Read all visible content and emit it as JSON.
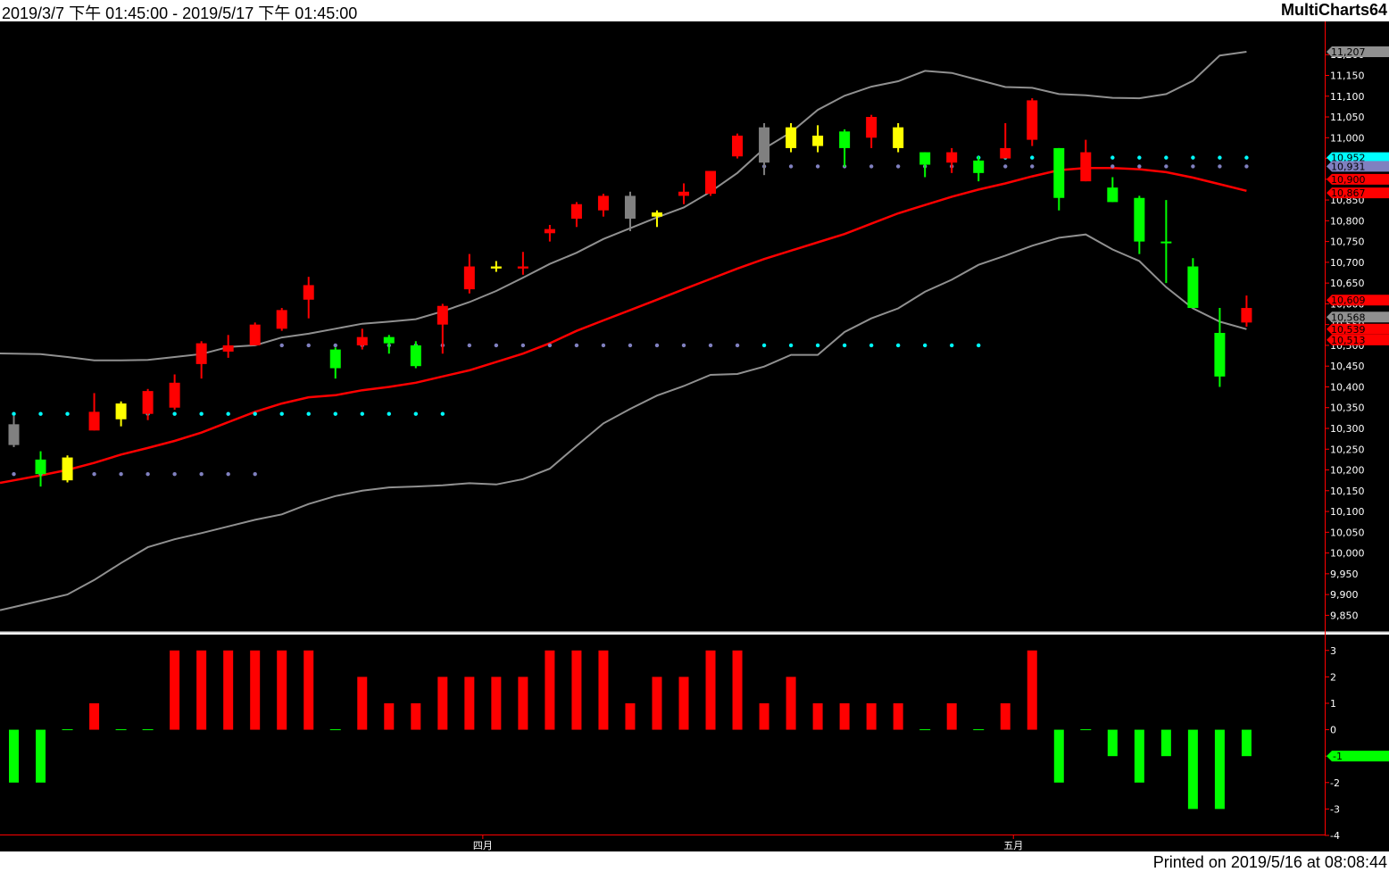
{
  "header": {
    "date_range": "2019/3/7 下午 01:45:00 - 2019/5/17 下午 01:45:00",
    "app_name": "MultiCharts64"
  },
  "footer": {
    "printed": "Printed on 2019/5/16 at 08:08:44"
  },
  "colors": {
    "bull": "#ff0000",
    "green": "#00ff00",
    "yellow": "#ffff00",
    "gray": "#808080",
    "middle_band": "#ff0000",
    "outer_band": "#909090",
    "cyan_dot": "#00ffff",
    "blue_dot": "#8080c0"
  },
  "chart_data": [
    {
      "type": "candlestick",
      "title": "",
      "x_tick_labels": [
        {
          "label": "四月",
          "at": 17.5
        },
        {
          "label": "五月",
          "at": 37.3
        }
      ],
      "ylim": [
        9810,
        11280
      ],
      "y_ticks": [
        9850,
        9900,
        9950,
        10000,
        10050,
        10100,
        10150,
        10200,
        10250,
        10300,
        10350,
        10400,
        10450,
        10500,
        10550,
        10600,
        10650,
        10700,
        10750,
        10800,
        10850,
        10900,
        10950,
        11000,
        11050,
        11100,
        11150,
        11200
      ],
      "candles": [
        {
          "o": 10310,
          "h": 10330,
          "l": 10255,
          "c": 10260,
          "color": "gray"
        },
        {
          "o": 10190,
          "h": 10245,
          "l": 10160,
          "c": 10225,
          "color": "green"
        },
        {
          "o": 10230,
          "h": 10235,
          "l": 10170,
          "c": 10175,
          "color": "yellow"
        },
        {
          "o": 10340,
          "h": 10385,
          "l": 10295,
          "c": 10295,
          "color": "red"
        },
        {
          "o": 10322,
          "h": 10365,
          "l": 10305,
          "c": 10360,
          "color": "yellow"
        },
        {
          "o": 10390,
          "h": 10395,
          "l": 10320,
          "c": 10335,
          "color": "red"
        },
        {
          "o": 10410,
          "h": 10430,
          "l": 10345,
          "c": 10350,
          "color": "red"
        },
        {
          "o": 10505,
          "h": 10510,
          "l": 10420,
          "c": 10455,
          "color": "red"
        },
        {
          "o": 10500,
          "h": 10525,
          "l": 10470,
          "c": 10485,
          "color": "red"
        },
        {
          "o": 10550,
          "h": 10555,
          "l": 10510,
          "c": 10500,
          "color": "red"
        },
        {
          "o": 10585,
          "h": 10590,
          "l": 10535,
          "c": 10540,
          "color": "red"
        },
        {
          "o": 10645,
          "h": 10665,
          "l": 10565,
          "c": 10610,
          "color": "red"
        },
        {
          "o": 10445,
          "h": 10495,
          "l": 10420,
          "c": 10490,
          "color": "green"
        },
        {
          "o": 10520,
          "h": 10540,
          "l": 10490,
          "c": 10500,
          "color": "red"
        },
        {
          "o": 10505,
          "h": 10525,
          "l": 10480,
          "c": 10520,
          "color": "green"
        },
        {
          "o": 10450,
          "h": 10510,
          "l": 10445,
          "c": 10500,
          "color": "green"
        },
        {
          "o": 10595,
          "h": 10600,
          "l": 10480,
          "c": 10550,
          "color": "red"
        },
        {
          "o": 10690,
          "h": 10720,
          "l": 10625,
          "c": 10635,
          "color": "red"
        },
        {
          "o": 10685,
          "h": 10703,
          "l": 10677,
          "c": 10690,
          "color": "yellow"
        },
        {
          "o": 10690,
          "h": 10725,
          "l": 10670,
          "c": 10685,
          "color": "red"
        },
        {
          "o": 10780,
          "h": 10790,
          "l": 10750,
          "c": 10770,
          "color": "red"
        },
        {
          "o": 10840,
          "h": 10845,
          "l": 10785,
          "c": 10805,
          "color": "red"
        },
        {
          "o": 10860,
          "h": 10865,
          "l": 10810,
          "c": 10825,
          "color": "red"
        },
        {
          "o": 10860,
          "h": 10870,
          "l": 10775,
          "c": 10805,
          "color": "gray"
        },
        {
          "o": 10810,
          "h": 10825,
          "l": 10785,
          "c": 10820,
          "color": "yellow"
        },
        {
          "o": 10860,
          "h": 10890,
          "l": 10840,
          "c": 10870,
          "color": "red"
        },
        {
          "o": 10920,
          "h": 10920,
          "l": 10860,
          "c": 10865,
          "color": "red"
        },
        {
          "o": 11005,
          "h": 11010,
          "l": 10950,
          "c": 10955,
          "color": "red"
        },
        {
          "o": 10940,
          "h": 11035,
          "l": 10910,
          "c": 11025,
          "color": "gray"
        },
        {
          "o": 10975,
          "h": 11035,
          "l": 10965,
          "c": 11025,
          "color": "yellow"
        },
        {
          "o": 10980,
          "h": 11030,
          "l": 10965,
          "c": 11005,
          "color": "yellow"
        },
        {
          "o": 10975,
          "h": 11020,
          "l": 10930,
          "c": 11015,
          "color": "green"
        },
        {
          "o": 11050,
          "h": 11055,
          "l": 10975,
          "c": 11000,
          "color": "red"
        },
        {
          "o": 10975,
          "h": 11035,
          "l": 10965,
          "c": 11025,
          "color": "yellow"
        },
        {
          "o": 10935,
          "h": 10965,
          "l": 10905,
          "c": 10965,
          "color": "green"
        },
        {
          "o": 10965,
          "h": 10975,
          "l": 10915,
          "c": 10940,
          "color": "red"
        },
        {
          "o": 10915,
          "h": 10955,
          "l": 10895,
          "c": 10945,
          "color": "green"
        },
        {
          "o": 10975,
          "h": 11035,
          "l": 10950,
          "c": 10950,
          "color": "red"
        },
        {
          "o": 11090,
          "h": 11095,
          "l": 10980,
          "c": 10995,
          "color": "red"
        },
        {
          "o": 10975,
          "h": 10975,
          "l": 10825,
          "c": 10855,
          "color": "green"
        },
        {
          "o": 10965,
          "h": 10995,
          "l": 10895,
          "c": 10895,
          "color": "red"
        },
        {
          "o": 10880,
          "h": 10905,
          "l": 10845,
          "c": 10845,
          "color": "green"
        },
        {
          "o": 10750,
          "h": 10860,
          "l": 10720,
          "c": 10855,
          "color": "green"
        },
        {
          "o": 10750,
          "h": 10850,
          "l": 10650,
          "c": 10750,
          "color": "green"
        },
        {
          "o": 10590,
          "h": 10710,
          "l": 10590,
          "c": 10690,
          "color": "green"
        },
        {
          "o": 10425,
          "h": 10590,
          "l": 10400,
          "c": 10530,
          "color": "green"
        },
        {
          "o": 10590,
          "h": 10620,
          "l": 10545,
          "c": 10555,
          "color": "red"
        }
      ],
      "middle_band": [
        10175,
        10187,
        10200,
        10217,
        10237,
        10253,
        10270,
        10290,
        10315,
        10340,
        10360,
        10375,
        10380,
        10392,
        10400,
        10410,
        10425,
        10440,
        10460,
        10480,
        10505,
        10535,
        10560,
        10585,
        10610,
        10635,
        10660,
        10685,
        10708,
        10728,
        10748,
        10768,
        10793,
        10818,
        10838,
        10858,
        10875,
        10890,
        10907,
        10922,
        10927,
        10927,
        10924,
        10917,
        10904,
        10888,
        10872
      ],
      "upper_band": [
        10480,
        10479,
        10472,
        10464,
        10464,
        10465,
        10472,
        10479,
        10496,
        10500,
        10519,
        10528,
        10540,
        10552,
        10557,
        10563,
        10582,
        10604,
        10631,
        10663,
        10696,
        10723,
        10756,
        10782,
        10808,
        10832,
        10870,
        10915,
        10974,
        11013,
        11067,
        11101,
        11123,
        11136,
        11161,
        11156,
        11139,
        11122,
        11120,
        11105,
        11102,
        11096,
        11095,
        11105,
        11137,
        11198,
        11207
      ],
      "lower_band": [
        9870,
        9885,
        9900,
        9935,
        9976,
        10014,
        10033,
        10048,
        10064,
        10080,
        10093,
        10118,
        10137,
        10150,
        10158,
        10160,
        10163,
        10168,
        10165,
        10178,
        10203,
        10258,
        10312,
        10347,
        10379,
        10402,
        10429,
        10431,
        10449,
        10477,
        10477,
        10532,
        10565,
        10589,
        10629,
        10658,
        10694,
        10716,
        10740,
        10759,
        10767,
        10731,
        10703,
        10640,
        10589,
        10557,
        10539
      ],
      "dot_rows": [
        {
          "value": 10335,
          "color": "cyan_dot",
          "from": 0,
          "to": 16
        },
        {
          "value": 10190,
          "color": "blue_dot",
          "from": 0,
          "to": 9
        },
        {
          "value": 10500,
          "color": "blue_dot",
          "from": 10,
          "to": 27
        },
        {
          "value": 10500,
          "color": "cyan_dot",
          "from": 28,
          "to": 36
        },
        {
          "value": 10952,
          "color": "cyan_dot",
          "from": 36,
          "to": 46
        },
        {
          "value": 10931,
          "color": "blue_dot",
          "from": 28,
          "to": 46
        }
      ],
      "price_tags": [
        {
          "label": "11,207",
          "value": 11207,
          "bg": "#909090"
        },
        {
          "label": "10,952",
          "value": 10952,
          "bg": "#00ffff"
        },
        {
          "label": "10,931",
          "value": 10931,
          "bg": "#8080c0"
        },
        {
          "label": "10,900",
          "value": 10900,
          "bg": "#ff0000"
        },
        {
          "label": "10,867",
          "value": 10867,
          "bg": "#ff0000"
        },
        {
          "label": "10,609",
          "value": 10609,
          "bg": "#ff0000"
        },
        {
          "label": "10,568",
          "value": 10568,
          "bg": "#909090"
        },
        {
          "label": "10,539",
          "value": 10539,
          "bg": "#ff0000"
        },
        {
          "label": "10,513",
          "value": 10513,
          "bg": "#ff0000"
        }
      ]
    },
    {
      "type": "bar",
      "title": "",
      "ylim": [
        -4,
        3.6
      ],
      "y_ticks": [
        -4,
        -3,
        -2,
        -1,
        0,
        1,
        2,
        3
      ],
      "values": [
        -2,
        -2,
        0,
        1,
        0,
        0,
        3,
        3,
        3,
        3,
        3,
        3,
        0,
        2,
        1,
        1,
        2,
        2,
        2,
        2,
        3,
        3,
        3,
        1,
        2,
        2,
        3,
        3,
        1,
        2,
        1,
        1,
        1,
        1,
        0,
        1,
        0,
        1,
        3,
        -2,
        0,
        -1,
        -2,
        -1,
        -3,
        -3,
        -1
      ],
      "value_tag": {
        "label": "-1",
        "value": -1,
        "bg": "#00ff00"
      }
    }
  ]
}
